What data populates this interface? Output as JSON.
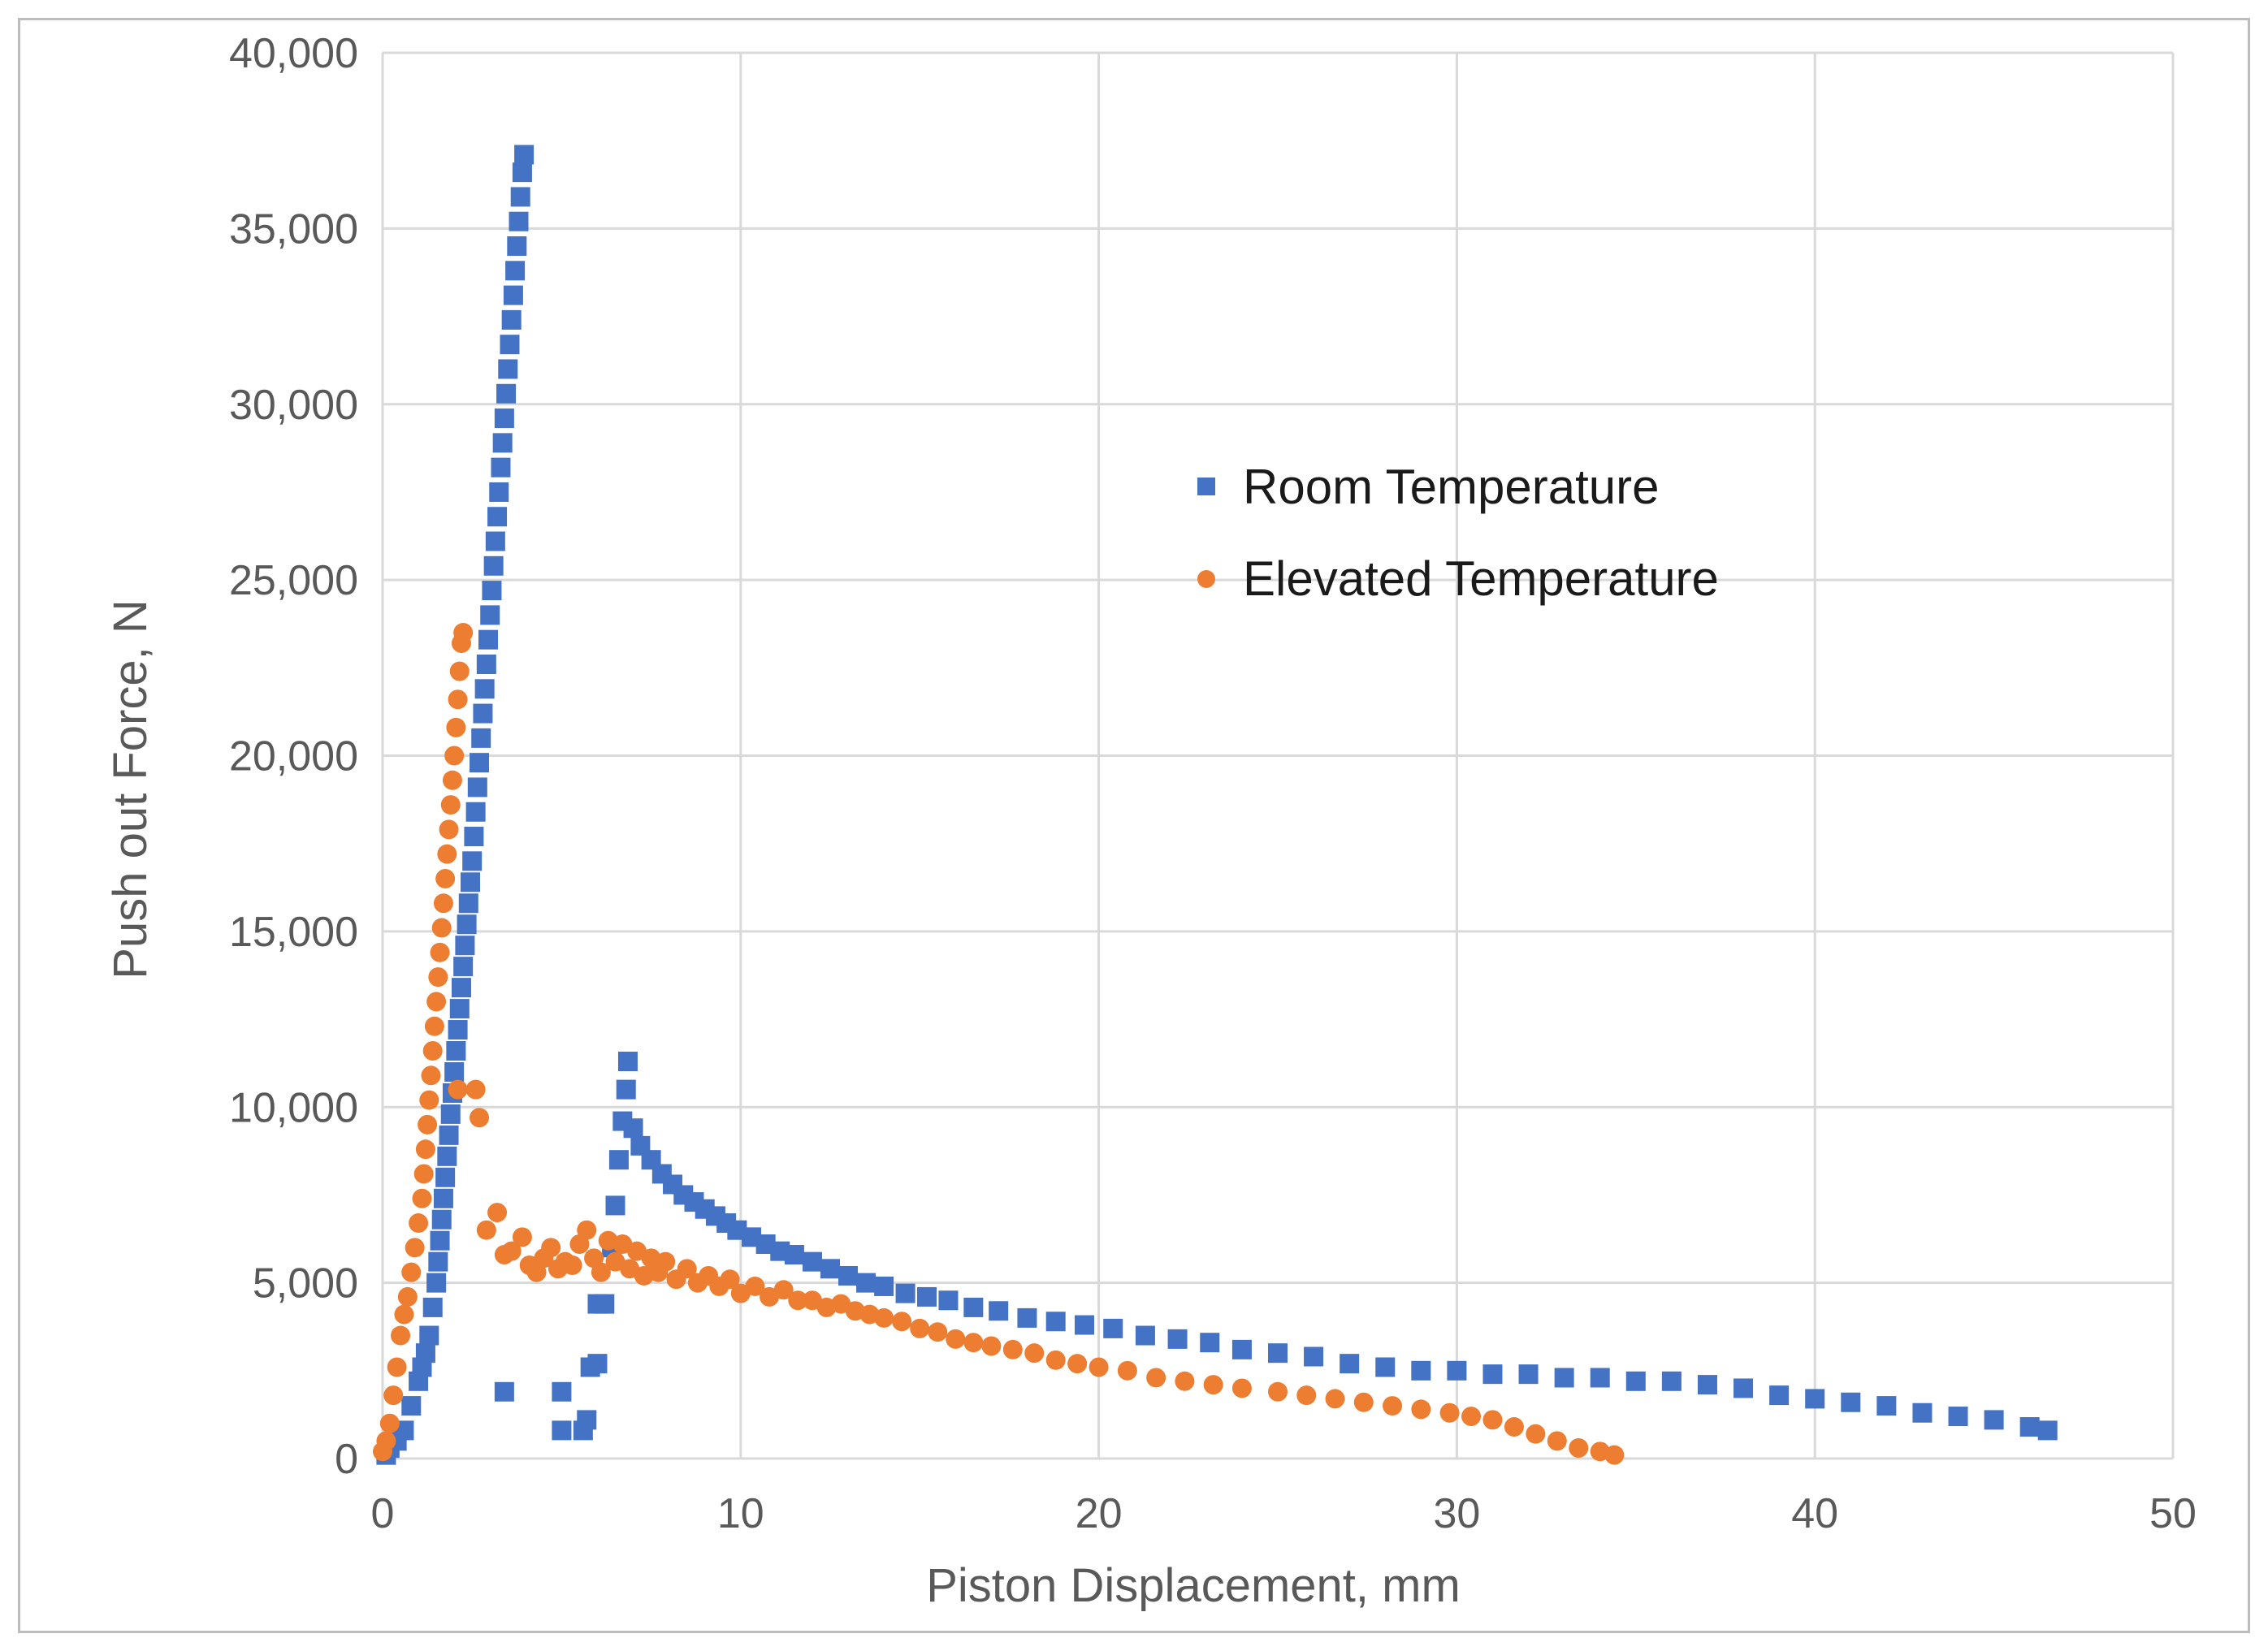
{
  "chart_data": {
    "type": "scatter",
    "title": "",
    "xlabel": "Piston Displacement, mm",
    "ylabel": "Push out Force, N",
    "xlim": [
      0,
      50
    ],
    "ylim": [
      0,
      40000
    ],
    "x_ticks": [
      0,
      10,
      20,
      30,
      40,
      50
    ],
    "y_ticks": [
      0,
      5000,
      10000,
      15000,
      20000,
      25000,
      30000,
      35000,
      40000
    ],
    "x_tick_labels": [
      "0",
      "10",
      "20",
      "30",
      "40",
      "50"
    ],
    "y_tick_labels": [
      "0",
      "5,000",
      "10,000",
      "15,000",
      "20,000",
      "25,000",
      "30,000",
      "35,000",
      "40,000"
    ],
    "grid": true,
    "legend_position": "upper-center-right",
    "colors": {
      "room": "#4472c4",
      "elevated": "#ed7d31",
      "grid": "#d9d9d9",
      "text": "#595959",
      "frame": "#bdbdbd"
    },
    "series": [
      {
        "name": "Room Temperature",
        "marker": "square",
        "color": "#4472c4",
        "points": [
          [
            0.1,
            100
          ],
          [
            0.2,
            300
          ],
          [
            0.4,
            500
          ],
          [
            0.6,
            800
          ],
          [
            0.8,
            1500
          ],
          [
            1.0,
            2200
          ],
          [
            1.1,
            2600
          ],
          [
            1.2,
            3000
          ],
          [
            1.3,
            3500
          ],
          [
            1.4,
            4300
          ],
          [
            1.5,
            5000
          ],
          [
            1.55,
            5600
          ],
          [
            1.6,
            6200
          ],
          [
            1.65,
            6800
          ],
          [
            1.7,
            7400
          ],
          [
            1.75,
            8000
          ],
          [
            1.8,
            8600
          ],
          [
            1.85,
            9200
          ],
          [
            1.9,
            9800
          ],
          [
            1.95,
            10400
          ],
          [
            2.0,
            11000
          ],
          [
            2.05,
            11600
          ],
          [
            2.1,
            12200
          ],
          [
            2.15,
            12800
          ],
          [
            2.2,
            13400
          ],
          [
            2.25,
            14000
          ],
          [
            2.3,
            14600
          ],
          [
            2.35,
            15200
          ],
          [
            2.4,
            15800
          ],
          [
            2.45,
            16400
          ],
          [
            2.5,
            17000
          ],
          [
            2.55,
            17700
          ],
          [
            2.6,
            18400
          ],
          [
            2.65,
            19100
          ],
          [
            2.7,
            19800
          ],
          [
            2.75,
            20500
          ],
          [
            2.8,
            21200
          ],
          [
            2.85,
            21900
          ],
          [
            2.9,
            22600
          ],
          [
            2.95,
            23300
          ],
          [
            3.0,
            24000
          ],
          [
            3.05,
            24700
          ],
          [
            3.1,
            25400
          ],
          [
            3.15,
            26100
          ],
          [
            3.2,
            26800
          ],
          [
            3.25,
            27500
          ],
          [
            3.3,
            28200
          ],
          [
            3.35,
            28900
          ],
          [
            3.4,
            29600
          ],
          [
            3.45,
            30300
          ],
          [
            3.5,
            31000
          ],
          [
            3.55,
            31700
          ],
          [
            3.6,
            32400
          ],
          [
            3.65,
            33100
          ],
          [
            3.7,
            33800
          ],
          [
            3.75,
            34500
          ],
          [
            3.8,
            35200
          ],
          [
            3.85,
            35900
          ],
          [
            3.9,
            36600
          ],
          [
            3.95,
            37100
          ],
          [
            3.4,
            1900
          ],
          [
            5.0,
            1900
          ],
          [
            5.0,
            800
          ],
          [
            5.6,
            800
          ],
          [
            5.7,
            1100
          ],
          [
            5.8,
            2600
          ],
          [
            6.0,
            2700
          ],
          [
            6.0,
            4400
          ],
          [
            6.2,
            4400
          ],
          [
            6.4,
            6000
          ],
          [
            6.5,
            7200
          ],
          [
            6.6,
            8500
          ],
          [
            6.7,
            9600
          ],
          [
            6.8,
            10500
          ],
          [
            6.85,
            11300
          ],
          [
            7.0,
            9400
          ],
          [
            7.2,
            8900
          ],
          [
            7.5,
            8500
          ],
          [
            7.8,
            8100
          ],
          [
            8.1,
            7800
          ],
          [
            8.4,
            7500
          ],
          [
            8.7,
            7300
          ],
          [
            9.0,
            7100
          ],
          [
            9.3,
            6900
          ],
          [
            9.6,
            6700
          ],
          [
            9.9,
            6500
          ],
          [
            10.3,
            6300
          ],
          [
            10.7,
            6100
          ],
          [
            11.1,
            5900
          ],
          [
            11.5,
            5800
          ],
          [
            12.0,
            5600
          ],
          [
            12.5,
            5400
          ],
          [
            13.0,
            5200
          ],
          [
            13.5,
            5000
          ],
          [
            14.0,
            4900
          ],
          [
            14.6,
            4700
          ],
          [
            15.2,
            4600
          ],
          [
            15.8,
            4500
          ],
          [
            16.5,
            4300
          ],
          [
            17.2,
            4200
          ],
          [
            18.0,
            4000
          ],
          [
            18.8,
            3900
          ],
          [
            19.6,
            3800
          ],
          [
            20.4,
            3700
          ],
          [
            21.3,
            3500
          ],
          [
            22.2,
            3400
          ],
          [
            23.1,
            3300
          ],
          [
            24.0,
            3100
          ],
          [
            25.0,
            3000
          ],
          [
            26.0,
            2900
          ],
          [
            27.0,
            2700
          ],
          [
            28.0,
            2600
          ],
          [
            29.0,
            2500
          ],
          [
            30.0,
            2500
          ],
          [
            31.0,
            2400
          ],
          [
            32.0,
            2400
          ],
          [
            33.0,
            2300
          ],
          [
            34.0,
            2300
          ],
          [
            35.0,
            2200
          ],
          [
            36.0,
            2200
          ],
          [
            37.0,
            2100
          ],
          [
            38.0,
            2000
          ],
          [
            39.0,
            1800
          ],
          [
            40.0,
            1700
          ],
          [
            41.0,
            1600
          ],
          [
            42.0,
            1500
          ],
          [
            43.0,
            1300
          ],
          [
            44.0,
            1200
          ],
          [
            45.0,
            1100
          ],
          [
            46.0,
            900
          ],
          [
            46.5,
            800
          ]
        ]
      },
      {
        "name": "Elevated Temperature",
        "marker": "circle",
        "color": "#ed7d31",
        "points": [
          [
            0.0,
            200
          ],
          [
            0.1,
            500
          ],
          [
            0.2,
            1000
          ],
          [
            0.3,
            1800
          ],
          [
            0.4,
            2600
          ],
          [
            0.5,
            3500
          ],
          [
            0.6,
            4100
          ],
          [
            0.7,
            4600
          ],
          [
            0.8,
            5300
          ],
          [
            0.9,
            6000
          ],
          [
            1.0,
            6700
          ],
          [
            1.1,
            7400
          ],
          [
            1.15,
            8100
          ],
          [
            1.2,
            8800
          ],
          [
            1.25,
            9500
          ],
          [
            1.3,
            10200
          ],
          [
            1.35,
            10900
          ],
          [
            1.4,
            11600
          ],
          [
            1.45,
            12300
          ],
          [
            1.5,
            13000
          ],
          [
            1.55,
            13700
          ],
          [
            1.6,
            14400
          ],
          [
            1.65,
            15100
          ],
          [
            1.7,
            15800
          ],
          [
            1.75,
            16500
          ],
          [
            1.8,
            17200
          ],
          [
            1.85,
            17900
          ],
          [
            1.9,
            18600
          ],
          [
            1.95,
            19300
          ],
          [
            2.0,
            20000
          ],
          [
            2.05,
            20800
          ],
          [
            2.1,
            21600
          ],
          [
            2.15,
            22400
          ],
          [
            2.2,
            23200
          ],
          [
            2.25,
            23500
          ],
          [
            2.1,
            10500
          ],
          [
            2.6,
            10500
          ],
          [
            2.7,
            9700
          ],
          [
            2.9,
            6500
          ],
          [
            3.2,
            7000
          ],
          [
            3.4,
            5800
          ],
          [
            3.6,
            5900
          ],
          [
            3.9,
            6300
          ],
          [
            4.1,
            5500
          ],
          [
            4.3,
            5300
          ],
          [
            4.5,
            5700
          ],
          [
            4.7,
            6000
          ],
          [
            4.9,
            5400
          ],
          [
            5.1,
            5600
          ],
          [
            5.3,
            5500
          ],
          [
            5.5,
            6100
          ],
          [
            5.7,
            6500
          ],
          [
            5.9,
            5700
          ],
          [
            6.1,
            5300
          ],
          [
            6.3,
            6200
          ],
          [
            6.5,
            5600
          ],
          [
            6.7,
            6100
          ],
          [
            6.9,
            5400
          ],
          [
            7.1,
            5900
          ],
          [
            7.3,
            5200
          ],
          [
            7.5,
            5700
          ],
          [
            7.7,
            5300
          ],
          [
            7.9,
            5600
          ],
          [
            8.2,
            5100
          ],
          [
            8.5,
            5400
          ],
          [
            8.8,
            5000
          ],
          [
            9.1,
            5200
          ],
          [
            9.4,
            4900
          ],
          [
            9.7,
            5100
          ],
          [
            10.0,
            4700
          ],
          [
            10.4,
            4900
          ],
          [
            10.8,
            4600
          ],
          [
            11.2,
            4800
          ],
          [
            11.6,
            4500
          ],
          [
            12.0,
            4500
          ],
          [
            12.4,
            4300
          ],
          [
            12.8,
            4400
          ],
          [
            13.2,
            4200
          ],
          [
            13.6,
            4100
          ],
          [
            14.0,
            4000
          ],
          [
            14.5,
            3900
          ],
          [
            15.0,
            3700
          ],
          [
            15.5,
            3600
          ],
          [
            16.0,
            3400
          ],
          [
            16.5,
            3300
          ],
          [
            17.0,
            3200
          ],
          [
            17.6,
            3100
          ],
          [
            18.2,
            3000
          ],
          [
            18.8,
            2800
          ],
          [
            19.4,
            2700
          ],
          [
            20.0,
            2600
          ],
          [
            20.8,
            2500
          ],
          [
            21.6,
            2300
          ],
          [
            22.4,
            2200
          ],
          [
            23.2,
            2100
          ],
          [
            24.0,
            2000
          ],
          [
            25.0,
            1900
          ],
          [
            25.8,
            1800
          ],
          [
            26.6,
            1700
          ],
          [
            27.4,
            1600
          ],
          [
            28.2,
            1500
          ],
          [
            29.0,
            1400
          ],
          [
            29.8,
            1300
          ],
          [
            30.4,
            1200
          ],
          [
            31.0,
            1100
          ],
          [
            31.6,
            900
          ],
          [
            32.2,
            700
          ],
          [
            32.8,
            500
          ],
          [
            33.4,
            300
          ],
          [
            34.0,
            200
          ],
          [
            34.4,
            100
          ]
        ]
      }
    ]
  }
}
